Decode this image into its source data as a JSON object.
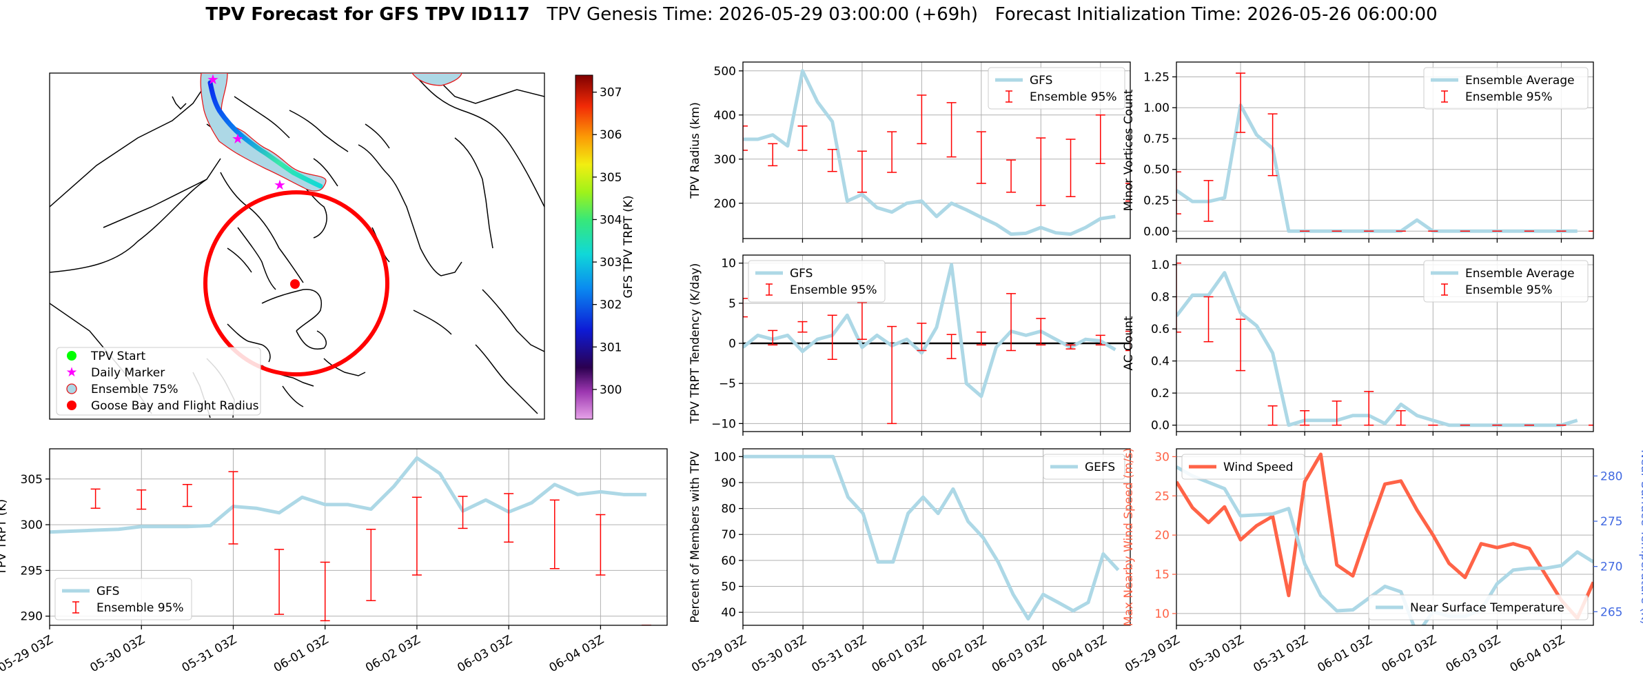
{
  "header": {
    "bold": "TPV Forecast for GFS TPV ID117",
    "genesis": "TPV Genesis Time: 2026-05-29 03:00:00 (+69h)",
    "init": "Forecast Initialization Time: 2026-05-26 06:00:00"
  },
  "map": {
    "colorbar": {
      "label": "GFS TPV TRPT (K)",
      "ticks": [
        300,
        301,
        302,
        303,
        304,
        305,
        306,
        307
      ],
      "min": 299.3,
      "max": 307.4
    },
    "legend": [
      "TPV Start",
      "Daily Marker",
      "Ensemble 75%",
      "Goose Bay and Flight Radius"
    ],
    "colors": {
      "start": "#00ff00",
      "daily": "#ff00ff",
      "ensemble_fill": "#add8e6",
      "ensemble_edge": "#e41a1c",
      "goose_bay": "#ff0000"
    }
  },
  "xticks": [
    "05-29 03Z",
    "05-30 03Z",
    "05-31 03Z",
    "06-01 03Z",
    "06-02 03Z",
    "06-03 03Z",
    "06-04 03Z"
  ],
  "chart_data": [
    {
      "id": "radius",
      "type": "line",
      "ylabel": "TPV Radius (km)",
      "ylim": [
        120,
        520
      ],
      "yticks": [
        200,
        300,
        400,
        500
      ],
      "yticklabels": [
        "200",
        "300",
        "400",
        "500"
      ],
      "legend": [
        "GFS",
        "Ensemble 95%"
      ],
      "legend_pos": "top-right",
      "line": [
        345,
        345,
        355,
        330,
        500,
        430,
        385,
        205,
        220,
        190,
        180,
        200,
        205,
        170,
        200,
        185,
        168,
        152,
        130,
        132,
        145,
        133,
        130,
        145,
        165,
        170
      ],
      "err_x": [
        0,
        2,
        4,
        6,
        8,
        10,
        12,
        14,
        16,
        18,
        20,
        22,
        24,
        26
      ],
      "err_lo": [
        320,
        285,
        320,
        272,
        225,
        270,
        335,
        305,
        245,
        225,
        195,
        215,
        290,
        205
      ],
      "err_hi": [
        375,
        335,
        375,
        322,
        318,
        362,
        445,
        428,
        362,
        298,
        348,
        345,
        400,
        245
      ]
    },
    {
      "id": "minor",
      "type": "line",
      "ylabel": "Minor Vortices Count",
      "ylim": [
        -0.06,
        1.37
      ],
      "yticks": [
        0,
        0.25,
        0.5,
        0.75,
        1.0,
        1.25
      ],
      "yticklabels": [
        "0.00",
        "0.25",
        "0.50",
        "0.75",
        "1.00",
        "1.25"
      ],
      "legend": [
        "Ensemble Average",
        "Ensemble 95%"
      ],
      "legend_pos": "top-right",
      "line": [
        0.33,
        0.24,
        0.24,
        0.27,
        1.02,
        0.78,
        0.67,
        0,
        0,
        0,
        0,
        0,
        0,
        0,
        0,
        0.09,
        0,
        0,
        0,
        0,
        0,
        0,
        0,
        0,
        0,
        0
      ],
      "err_x": [
        0,
        2,
        4,
        6,
        8,
        10,
        12,
        14,
        16,
        18,
        20,
        22,
        24,
        26
      ],
      "err_lo": [
        0.14,
        0.08,
        0.8,
        0.45,
        0,
        0,
        0,
        0,
        0,
        0,
        0,
        0,
        0,
        0
      ],
      "err_hi": [
        0.48,
        0.41,
        1.28,
        0.95,
        0,
        0,
        0,
        0,
        0,
        0,
        0,
        0,
        0,
        0
      ]
    },
    {
      "id": "tend",
      "type": "line",
      "ylabel": "TPV TRPT Tendency (K/day)",
      "ylim": [
        -11,
        11
      ],
      "yticks": [
        -10,
        -5,
        0,
        5,
        10
      ],
      "yticklabels": [
        "−10",
        "−5",
        "0",
        "5",
        "10"
      ],
      "legend": [
        "GFS",
        "Ensemble 95%"
      ],
      "legend_pos": "top-left",
      "line": [
        -0.5,
        1,
        0.5,
        1,
        -1,
        0.5,
        1,
        3.5,
        -0.5,
        1,
        -0.3,
        0.5,
        -1.2,
        2,
        9.8,
        -5,
        -6.6,
        -0.5,
        1.5,
        1,
        1.5,
        0.5,
        -0.5,
        0.5,
        0.3,
        -0.8
      ],
      "err_x": [
        0,
        2,
        4,
        6,
        8,
        10,
        12,
        14,
        16,
        18,
        20,
        22,
        24,
        26
      ],
      "err_lo": [
        3.3,
        -0.2,
        1.4,
        -2.0,
        0.5,
        -10.0,
        -0.9,
        -1.9,
        -0.2,
        -0.9,
        -0.2,
        -0.7,
        1.0,
        -0.9
      ],
      "err_hi": [
        5.6,
        1.6,
        2.7,
        3.5,
        5.1,
        2.1,
        2.5,
        1.1,
        1.4,
        6.2,
        3.1,
        -0.2,
        -0.2,
        1.5
      ]
    },
    {
      "id": "ac",
      "type": "line",
      "ylabel": "AC Count",
      "ylim": [
        -0.04,
        1.06
      ],
      "yticks": [
        0,
        0.2,
        0.4,
        0.6,
        0.8,
        1.0
      ],
      "yticklabels": [
        "0.0",
        "0.2",
        "0.4",
        "0.6",
        "0.8",
        "1.0"
      ],
      "legend": [
        "Ensemble Average",
        "Ensemble 95%"
      ],
      "legend_pos": "top-right",
      "line": [
        0.68,
        0.81,
        0.81,
        0.95,
        0.7,
        0.62,
        0.45,
        0,
        0.03,
        0.03,
        0.03,
        0.06,
        0.06,
        0.01,
        0.13,
        0.06,
        0.03,
        0,
        0,
        0,
        0,
        0,
        0,
        0,
        0,
        0.03
      ],
      "err_x": [
        0,
        2,
        4,
        6,
        8,
        10,
        12,
        14,
        16,
        18,
        20,
        22,
        24,
        26
      ],
      "err_lo": [
        0.58,
        0.52,
        0.34,
        0,
        0,
        0,
        0,
        0,
        0,
        0,
        0,
        0,
        0,
        0
      ],
      "err_hi": [
        1.01,
        0.8,
        0.66,
        0.12,
        0.09,
        0.15,
        0.21,
        0.09,
        0,
        0,
        0,
        0,
        0,
        0
      ]
    },
    {
      "id": "trpt",
      "type": "line",
      "ylabel": "TPV TRPT (K)",
      "ylim": [
        289,
        308.3
      ],
      "yticks": [
        290,
        295,
        300,
        305
      ],
      "yticklabels": [
        "290",
        "295",
        "300",
        "305"
      ],
      "legend": [
        "GFS",
        "Ensemble 95%"
      ],
      "legend_pos": "bottom-left",
      "line": [
        299.2,
        299.3,
        299.4,
        299.5,
        299.8,
        299.8,
        299.8,
        299.9,
        302,
        301.8,
        301.3,
        303,
        302.2,
        302.2,
        301.7,
        304.2,
        307.3,
        305.6,
        301.5,
        302.7,
        301.4,
        302.4,
        304.4,
        303.3,
        303.6,
        303.3,
        303.3
      ],
      "err_x": [
        2,
        4,
        6,
        8,
        10,
        12,
        14,
        16,
        18,
        20,
        22,
        24,
        26
      ],
      "err_lo": [
        301.8,
        301.7,
        302,
        297.9,
        290.2,
        289.5,
        291.7,
        294.5,
        299.6,
        298.1,
        295.2,
        294.5,
        289
      ],
      "err_hi": [
        303.9,
        303.8,
        304.4,
        305.8,
        297.3,
        295.9,
        299.5,
        303,
        303.1,
        303.4,
        302.7,
        301.1,
        289
      ]
    },
    {
      "id": "pct",
      "type": "line",
      "ylabel": "Percent of Members with TPV",
      "ylim": [
        35,
        103
      ],
      "yticks": [
        40,
        50,
        60,
        70,
        80,
        90,
        100
      ],
      "yticklabels": [
        "40",
        "50",
        "60",
        "70",
        "80",
        "90",
        "100"
      ],
      "legend": [
        "GEFS"
      ],
      "legend_pos": "top-right",
      "line": [
        100,
        100,
        100,
        100,
        100,
        100,
        100,
        84.4,
        78.1,
        59.4,
        59.4,
        78.1,
        84.4,
        78.1,
        87.5,
        75,
        68.8,
        59.4,
        46.9,
        37.5,
        46.9,
        43.8,
        40.6,
        43.8,
        62.5,
        56.3
      ]
    },
    {
      "id": "wind",
      "type": "line",
      "ylabel": "Max Nearby Wind Speed (m/s)",
      "ylabel2": "Near Surface Temperature (K)",
      "ylim": [
        8.5,
        31
      ],
      "yticks": [
        10,
        15,
        20,
        25,
        30
      ],
      "yticklabels": [
        "10",
        "15",
        "20",
        "25",
        "30"
      ],
      "ylim2": [
        263.5,
        283
      ],
      "yticks2": [
        265,
        270,
        275,
        280
      ],
      "yticklabels2": [
        "265",
        "270",
        "275",
        "280"
      ],
      "legend": [
        "Wind Speed"
      ],
      "legend2": [
        "Near Surface Temperature"
      ],
      "legend_pos": "top-left",
      "legend2_pos": "bottom-right",
      "series": [
        {
          "name": "Wind Speed",
          "values": [
            26.8,
            23.5,
            21.6,
            23.6,
            19.4,
            21.2,
            22.4,
            12.3,
            26.8,
            30.3,
            16.2,
            14.8,
            20.8,
            26.5,
            26.9,
            23.2,
            20,
            16.4,
            14.6,
            18.9,
            18.4,
            18.9,
            18.3,
            15,
            11.7,
            9.4,
            14
          ]
        },
        {
          "name": "Near Surface Temperature",
          "values": [
            281,
            280,
            279.3,
            278.6,
            275.6,
            275.7,
            275.8,
            276.4,
            270.3,
            266.8,
            265.1,
            265.2,
            266.5,
            267.8,
            267.2,
            262.5,
            265,
            264.5,
            264.5,
            265.2,
            268.1,
            269.6,
            269.8,
            269.8,
            270.1,
            271.6,
            270.5
          ]
        }
      ]
    }
  ]
}
